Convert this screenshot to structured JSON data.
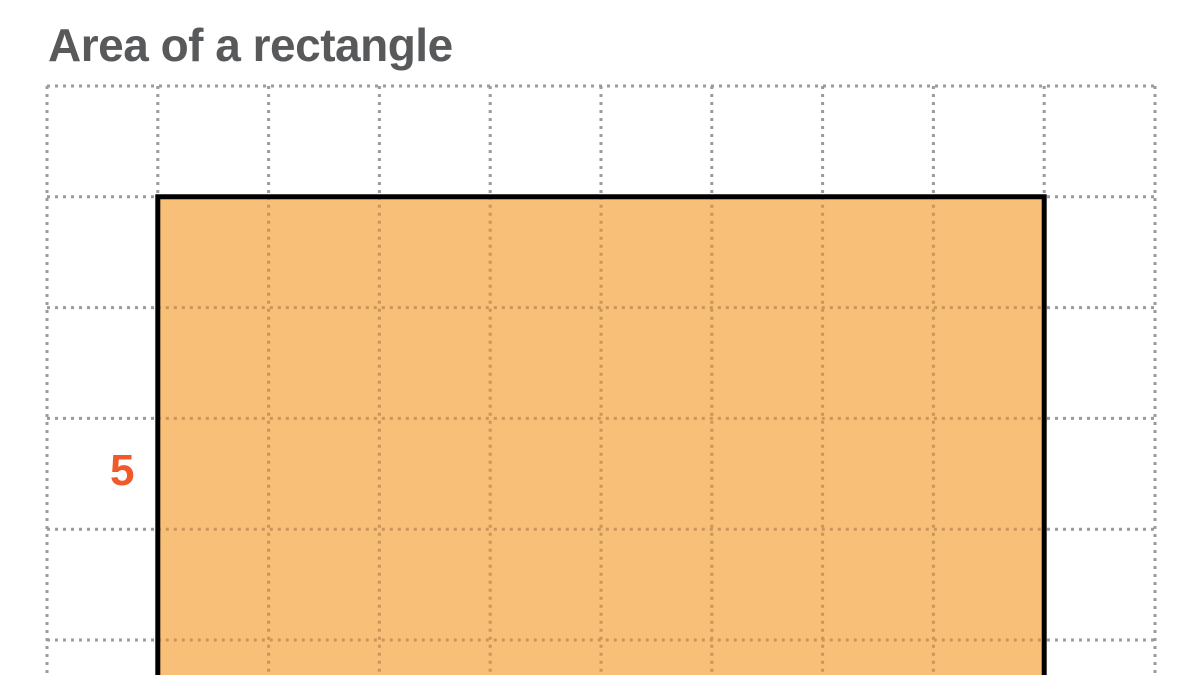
{
  "title": "Area of a rectangle",
  "side_label": "5",
  "diagram": {
    "grid_columns": 10,
    "grid_rows_visible": 5,
    "rectangle_width_units": 8,
    "rectangle_height_units": 5,
    "colors": {
      "rectangle_fill": "#f8bf78",
      "rectangle_border": "#000000",
      "grid": "#9b9b9b",
      "grid_inside": "#c8955a",
      "title": "#58595b",
      "label": "#f05a28"
    }
  }
}
